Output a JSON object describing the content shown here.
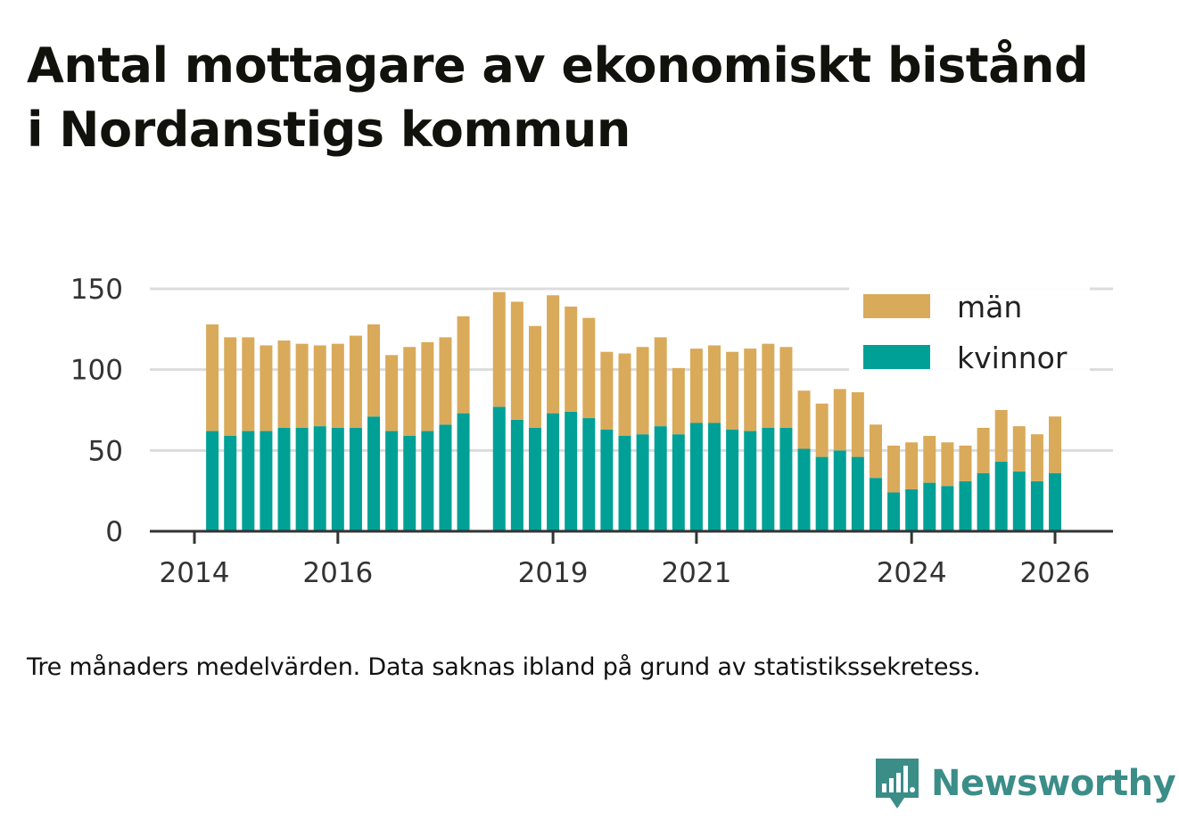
{
  "title_line1": "Antal mottagare av ekonomiskt bistånd",
  "title_line2": "i Nordanstigs kommun",
  "note": "Tre månaders medelvärden. Data saknas ibland på grund av statistikssekretess.",
  "brand": {
    "name": "Newsworthy",
    "icon": "bar-chart-speech-bubble-icon",
    "color": "#3b8d88"
  },
  "colors": {
    "women": "#00a096",
    "men": "#d9aa5a",
    "grid": "#dcdcdc",
    "axis": "#333333"
  },
  "chart_data": {
    "type": "bar",
    "stacked": true,
    "title": "Antal mottagare av ekonomiskt bistånd i Nordanstigs kommun",
    "xlabel": "",
    "ylabel": "",
    "ylim": [
      0,
      150
    ],
    "yticks": [
      0,
      50,
      100,
      150
    ],
    "xlim": [
      2014.0,
      2026.4
    ],
    "xticks": [
      "2014",
      "2016",
      "2019",
      "2021",
      "2024",
      "2026"
    ],
    "legend": {
      "position": "top-right",
      "entries": [
        "män",
        "kvinnor"
      ]
    },
    "x": [
      2014.25,
      2014.5,
      2014.75,
      2015.0,
      2015.25,
      2015.5,
      2015.75,
      2016.0,
      2016.25,
      2016.5,
      2016.75,
      2017.0,
      2017.25,
      2017.5,
      2017.75,
      2018.25,
      2018.5,
      2018.75,
      2019.0,
      2019.25,
      2019.5,
      2019.75,
      2020.0,
      2020.25,
      2020.5,
      2020.75,
      2021.0,
      2021.25,
      2021.5,
      2021.75,
      2022.0,
      2022.25,
      2022.5,
      2022.75,
      2023.0,
      2023.25,
      2023.5,
      2023.75,
      2024.0,
      2024.25,
      2024.5,
      2024.75,
      2025.0,
      2025.25,
      2025.5,
      2025.75,
      2026.0
    ],
    "series": [
      {
        "name": "kvinnor",
        "values": [
          62,
          59,
          62,
          62,
          64,
          64,
          65,
          64,
          64,
          71,
          62,
          59,
          62,
          66,
          73,
          77,
          69,
          64,
          73,
          74,
          70,
          63,
          59,
          60,
          65,
          60,
          67,
          67,
          63,
          62,
          64,
          64,
          51,
          46,
          50,
          46,
          33,
          24,
          26,
          30,
          28,
          31,
          36,
          43,
          37,
          31,
          36
        ]
      },
      {
        "name": "män",
        "values": [
          66,
          61,
          58,
          53,
          54,
          52,
          50,
          52,
          57,
          57,
          47,
          55,
          55,
          54,
          60,
          71,
          73,
          63,
          73,
          65,
          62,
          48,
          51,
          54,
          55,
          41,
          46,
          48,
          48,
          51,
          52,
          50,
          36,
          33,
          38,
          40,
          33,
          29,
          29,
          29,
          27,
          22,
          28,
          32,
          28,
          29,
          35
        ]
      }
    ]
  }
}
